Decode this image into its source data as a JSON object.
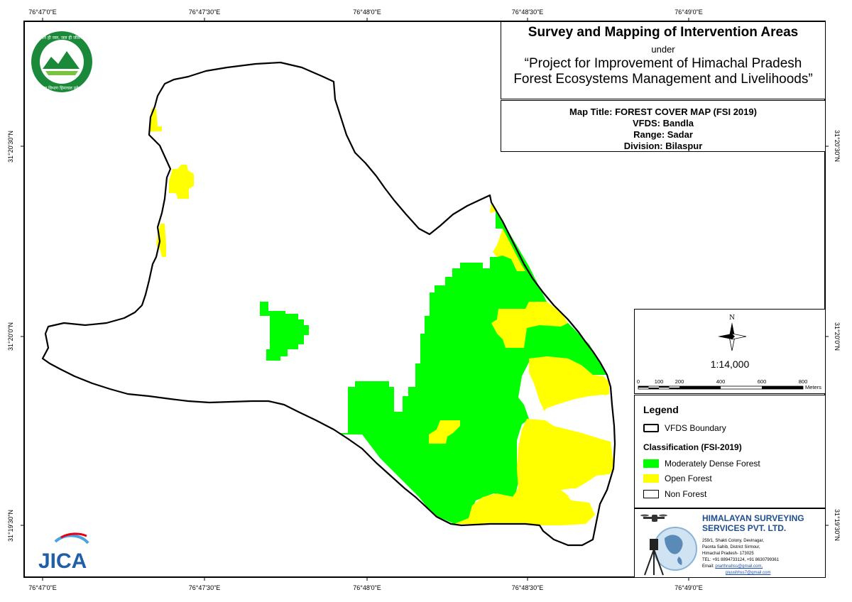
{
  "title": {
    "main": "Survey and Mapping of Intervention Areas",
    "under": "under",
    "project_line1": "“Project for Improvement of Himachal Pradesh",
    "project_line2": "Forest Ecosystems Management and Livelihoods”"
  },
  "info": {
    "map_title": "Map Title: FOREST COVER MAP (FSI 2019)",
    "vfds": "VFDS: Bandla",
    "range": "Range: Sadar",
    "division": "Division: Bilaspur"
  },
  "axis_labels": {
    "top": [
      "76°47'0\"E",
      "76°47'30\"E",
      "76°48'0\"E",
      "76°48'30\"E",
      "76°49'0\"E"
    ],
    "bottom": [
      "76°47'0\"E",
      "76°47'30\"E",
      "76°48'0\"E",
      "76°48'30\"E",
      "76°49'0\"E"
    ],
    "left": [
      "31°20'30\"N",
      "31°20'0\"N",
      "31°19'30\"N"
    ],
    "right": [
      "31°20'30\"N",
      "31°20'0\"N",
      "31°19'30\"N"
    ]
  },
  "scale": {
    "north_label": "N",
    "ratio": "1:14,000",
    "bar_labels": [
      "0",
      "100",
      "200",
      "400",
      "600",
      "800"
    ],
    "unit": "Meters"
  },
  "legend": {
    "title": "Legend",
    "boundary_label": "VFDS Boundary",
    "classification_title": "Classification (FSI-2019)",
    "items": [
      {
        "label": "Moderately Dense Forest",
        "color": "#00ff00"
      },
      {
        "label": "Open Forest",
        "color": "#ffff00"
      },
      {
        "label": "Non Forest",
        "color": "#ffffff"
      }
    ]
  },
  "company": {
    "name_line1": "HIMALAYAN SURVEYING",
    "name_line2": "SERVICES PVT. LTD.",
    "address1": "259/1, Shakti Colony, Devinagar,",
    "address2": "Paonta Sahib, District Sirmour,",
    "address3": "Himachal Pradesh- 173025",
    "phone": "TEL: +91 8894733124, +91 8630799361",
    "email_label": "Email: ",
    "email1": "prarthnahss@gmail.com,",
    "email2": "piyushhss7@gmail.com"
  },
  "logos": {
    "seal_text_top": "वन ही जल, जल ही जीवन",
    "seal_text_bottom": "वन विभाग हिमाचल प्रदेश",
    "jica": "JICA"
  },
  "colors": {
    "dense_forest": "#00ff00",
    "open_forest": "#ffff00",
    "non_forest": "#ffffff",
    "boundary": "#000000",
    "company_blue": "#1f4e8c"
  },
  "icons": [
    "north-arrow-icon",
    "drone-icon",
    "globe-icon",
    "total-station-icon"
  ]
}
